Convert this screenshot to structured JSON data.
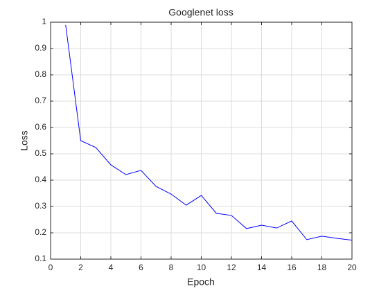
{
  "chart_data": {
    "type": "line",
    "title": "Googlenet loss",
    "x_label": "Epoch",
    "y_label": "Loss",
    "x": [
      1,
      2,
      3,
      4,
      5,
      6,
      7,
      8,
      9,
      10,
      11,
      12,
      13,
      14,
      15,
      16,
      17,
      18,
      19,
      20
    ],
    "values": [
      0.99,
      0.55,
      0.524,
      0.458,
      0.421,
      0.437,
      0.376,
      0.347,
      0.305,
      0.342,
      0.274,
      0.266,
      0.216,
      0.229,
      0.218,
      0.245,
      0.174,
      0.187,
      0.179,
      0.172
    ],
    "color": "#0000ff",
    "xlim": [
      0,
      20
    ],
    "xticks": [
      0,
      2,
      4,
      6,
      8,
      10,
      12,
      14,
      16,
      18,
      20
    ],
    "ylim": [
      0.1,
      1
    ],
    "yticks": [
      0.1,
      0.2,
      0.3,
      0.4,
      0.5,
      0.6,
      0.7,
      0.8,
      0.9,
      1
    ],
    "grid": true
  }
}
